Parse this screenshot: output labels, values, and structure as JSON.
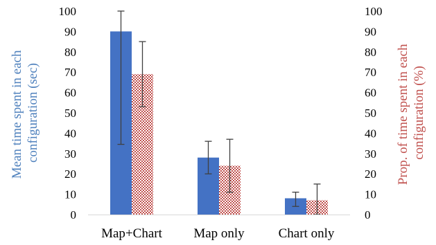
{
  "chart_data": {
    "type": "bar",
    "categories": [
      "Map+Chart",
      "Map only",
      "Chart only"
    ],
    "series": [
      {
        "axis": "left",
        "color": "#4472C4",
        "pattern": "solid",
        "values": [
          90,
          28,
          8
        ],
        "error_low": [
          34.5,
          20,
          4
        ],
        "error_high": [
          100,
          36,
          11
        ]
      },
      {
        "axis": "right",
        "color": "#C0504D",
        "pattern": "checkered",
        "values": [
          69,
          24,
          7
        ],
        "error_low": [
          53,
          11,
          0
        ],
        "error_high": [
          85,
          37,
          15
        ]
      }
    ],
    "ylabel_left": [
      "Mean time spent in each",
      "configuration (sec)"
    ],
    "ylabel_right": [
      "Prop. of time spent in each",
      "configuration (%)"
    ],
    "ylim_left": [
      0,
      100
    ],
    "ylim_right": [
      0,
      100
    ],
    "yticks": [
      0,
      10,
      20,
      30,
      40,
      50,
      60,
      70,
      80,
      90,
      100
    ],
    "left_label_color": "#4F81BD",
    "right_label_color": "#C0504D",
    "grid": false,
    "legend": "none"
  }
}
